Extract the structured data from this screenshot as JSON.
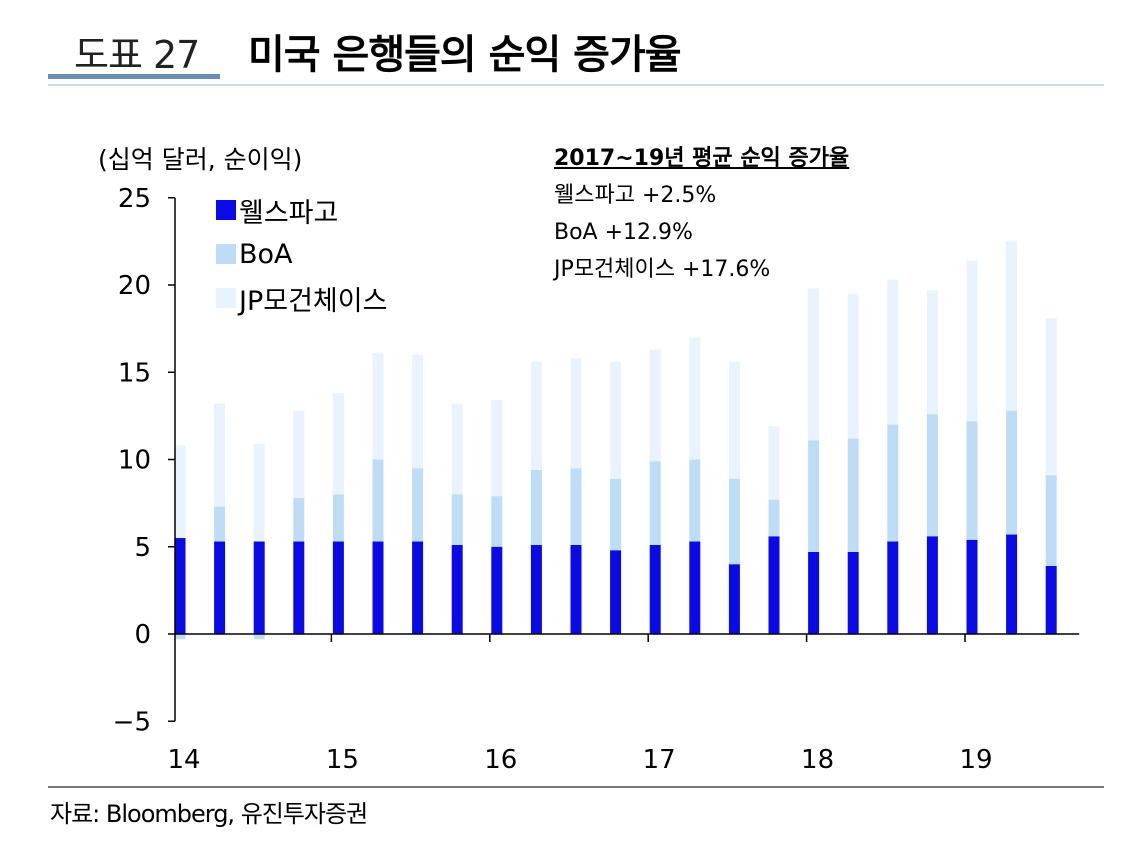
{
  "header": {
    "figure_number": "도표 27",
    "title": "미국 은행들의 순익 증가율"
  },
  "unit_label": "(십억 달러, 순이익)",
  "annotation": {
    "heading": "2017~19년 평균 순익 증가율",
    "lines": [
      "웰스파고 +2.5%",
      "BoA +12.9%",
      "JP모건체이스 +17.6%"
    ]
  },
  "colors": {
    "wells": "#0a0ae6",
    "boa": "#bfdcf7",
    "jpm": "#e9f3fd",
    "axis": "#000000"
  },
  "source": "자료: Bloomberg, 유진투자증권",
  "chart_data": {
    "type": "bar",
    "stacked": true,
    "x_axis_labels": [
      "14",
      "15",
      "16",
      "17",
      "18",
      "19"
    ],
    "categories": [
      "14Q1",
      "14Q2",
      "14Q3",
      "14Q4",
      "15Q1",
      "15Q2",
      "15Q3",
      "15Q4",
      "16Q1",
      "16Q2",
      "16Q3",
      "16Q4",
      "17Q1",
      "17Q2",
      "17Q3",
      "17Q4",
      "18Q1",
      "18Q2",
      "18Q3",
      "18Q4",
      "19Q1",
      "19Q2",
      "19Q3"
    ],
    "series": [
      {
        "name": "웰스파고",
        "values": [
          5.5,
          5.3,
          5.3,
          5.3,
          5.3,
          5.3,
          5.3,
          5.1,
          5.0,
          5.1,
          5.1,
          4.8,
          5.1,
          5.3,
          4.0,
          5.6,
          4.7,
          4.7,
          5.3,
          5.6,
          5.4,
          5.7,
          3.9
        ]
      },
      {
        "name": "BoA",
        "values": [
          -0.3,
          2.0,
          -0.3,
          2.5,
          2.7,
          4.7,
          4.2,
          2.9,
          2.9,
          4.3,
          4.4,
          4.1,
          4.8,
          4.7,
          4.9,
          2.1,
          6.4,
          6.5,
          6.7,
          7.0,
          6.8,
          7.1,
          5.2
        ]
      },
      {
        "name": "JP모건체이스",
        "values": [
          5.3,
          5.9,
          5.6,
          5.0,
          5.8,
          6.1,
          6.5,
          5.2,
          5.5,
          6.2,
          6.3,
          6.7,
          6.4,
          7.0,
          6.7,
          4.2,
          8.7,
          8.3,
          8.3,
          7.1,
          9.2,
          9.7,
          9.0
        ]
      }
    ],
    "ylim": [
      -5,
      25
    ],
    "yticks": [
      -5,
      0,
      5,
      10,
      15,
      20,
      25
    ],
    "legend_position": "top-left",
    "grid": false
  }
}
